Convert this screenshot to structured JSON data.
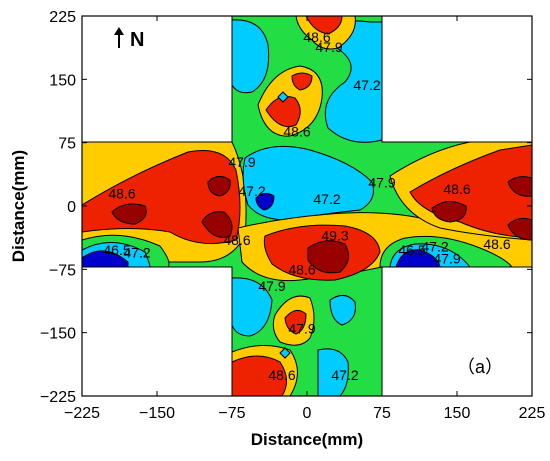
{
  "chart_data": {
    "type": "contour",
    "xlabel": "Distance(mm)",
    "ylabel": "Distance(mm)",
    "xlim": [
      -225,
      225
    ],
    "ylim": [
      -225,
      225
    ],
    "xticks": [
      -225,
      -150,
      -75,
      0,
      75,
      150,
      225
    ],
    "yticks": [
      -225,
      -150,
      -75,
      0,
      75,
      150,
      225
    ],
    "north_label": "N",
    "panel_label": "（a）",
    "domain": "cross-shaped region: |y| <= 75 or |x| <= 75",
    "levels": [
      46.5,
      47.2,
      47.9,
      48.6,
      49.3
    ],
    "level_colors": [
      "#0000cc",
      "#00ccff",
      "#22dd44",
      "#ffcc00",
      "#ee2200",
      "#990000"
    ],
    "contour_labels": [
      {
        "text": "48.6",
        "x": 10,
        "y": 200
      },
      {
        "text": "47.9",
        "x": 22,
        "y": 188
      },
      {
        "text": "47.2",
        "x": 60,
        "y": 143
      },
      {
        "text": "48.6",
        "x": -10,
        "y": 88
      },
      {
        "text": "47.9",
        "x": -65,
        "y": 52
      },
      {
        "text": "47.2",
        "x": -55,
        "y": 18
      },
      {
        "text": "47.2",
        "x": 20,
        "y": 8
      },
      {
        "text": "47.9",
        "x": 75,
        "y": 28
      },
      {
        "text": "48.6",
        "x": -185,
        "y": 15
      },
      {
        "text": "48.6",
        "x": 150,
        "y": 20
      },
      {
        "text": "48.6",
        "x": -70,
        "y": -40
      },
      {
        "text": "49.3",
        "x": 28,
        "y": -35
      },
      {
        "text": "48.6",
        "x": -5,
        "y": -75
      },
      {
        "text": "47.9",
        "x": -35,
        "y": -95
      },
      {
        "text": "46.5",
        "x": -190,
        "y": -52
      },
      {
        "text": "47.2",
        "x": -170,
        "y": -55
      },
      {
        "text": "46.5",
        "x": 105,
        "y": -52
      },
      {
        "text": "47.2",
        "x": 128,
        "y": -48
      },
      {
        "text": "47.9",
        "x": 140,
        "y": -62
      },
      {
        "text": "48.6",
        "x": 190,
        "y": -45
      },
      {
        "text": "47.9",
        "x": -5,
        "y": -145
      },
      {
        "text": "48.6",
        "x": -25,
        "y": -200
      },
      {
        "text": "47.2",
        "x": 38,
        "y": -200
      }
    ]
  }
}
